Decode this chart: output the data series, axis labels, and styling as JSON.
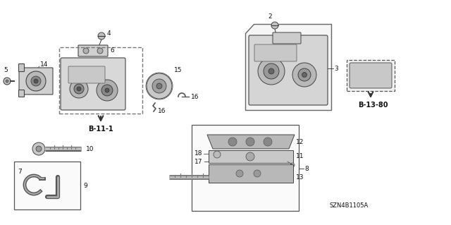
{
  "background_color": "#ffffff",
  "part_labels": [
    "2",
    "3",
    "4",
    "5",
    "6",
    "7",
    "8",
    "9",
    "10",
    "11",
    "12",
    "13",
    "14",
    "15",
    "16",
    "17",
    "18"
  ],
  "ref_labels": [
    "B-11-1",
    "B-13-80"
  ],
  "watermark": "SZN4B1105A"
}
